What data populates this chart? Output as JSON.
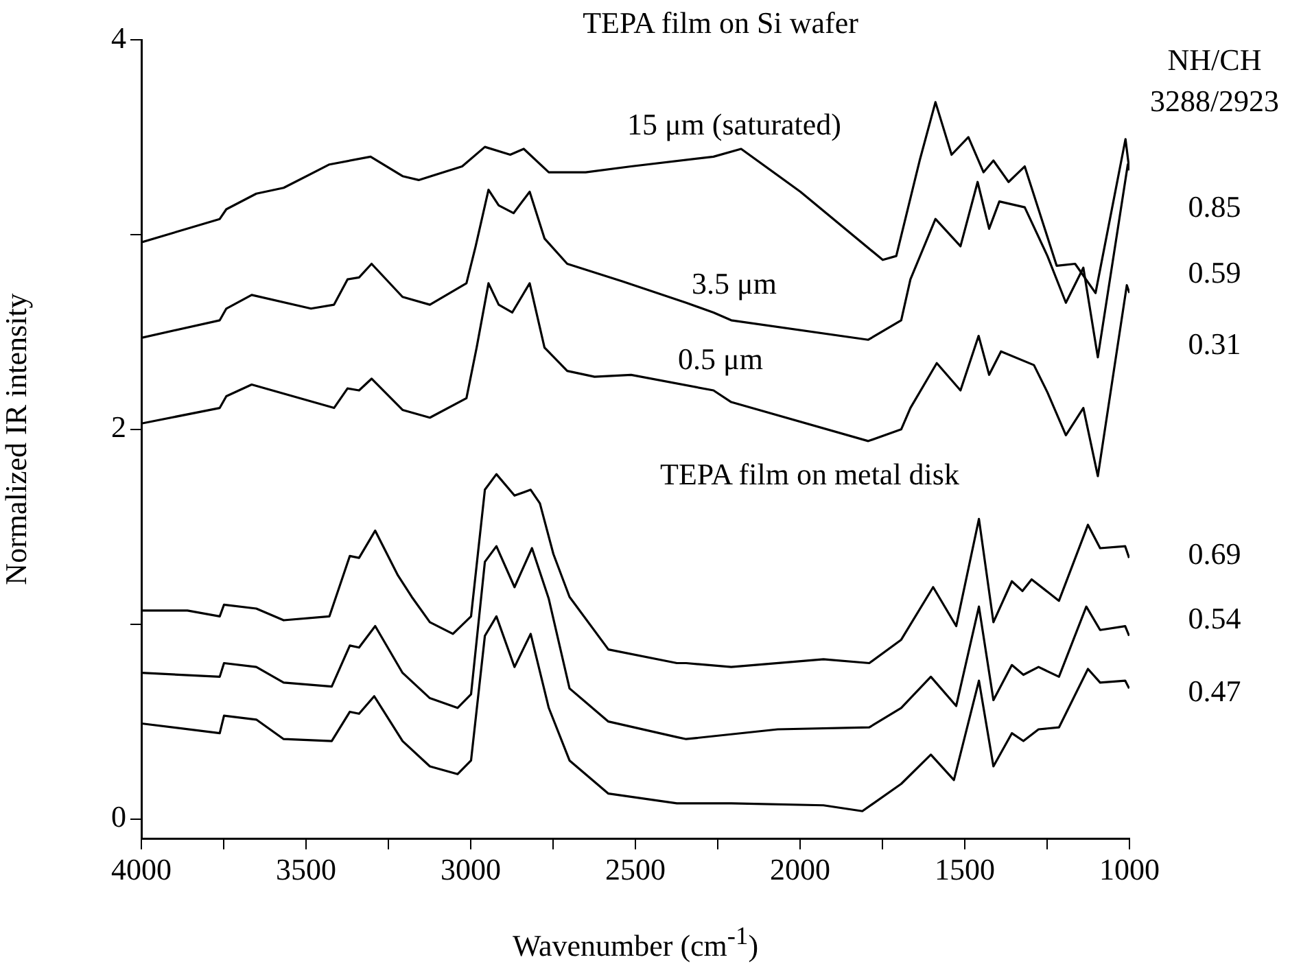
{
  "chart_data": {
    "type": "line",
    "xlabel": "Wavenumber (cm$^{-1}$)",
    "ylabel": "Normalized IR intensity",
    "annotations": [
      "TEPA film on Si wafer",
      "NH/CH",
      "3288/2923",
      "0.85",
      "0.59",
      "0.31",
      "TEPA film on metal disk",
      "0.69",
      "0.54",
      "0.47"
    ],
    "xlim": [
      4000,
      1000
    ],
    "xticks": [
      4000,
      {
        "value": 3750,
        "label": null
      },
      3500,
      {
        "value": 3250,
        "label": null
      },
      3000,
      {
        "value": 2750,
        "label": null
      },
      2500,
      {
        "value": 2250,
        "label": null
      },
      2000,
      {
        "value": 1750,
        "label": null
      },
      1500,
      {
        "value": 1250,
        "label": null
      },
      1000
    ],
    "ylim": [
      -0.1,
      4
    ],
    "yticks": [
      0,
      {
        "value": 1,
        "label": null
      },
      2,
      {
        "value": 3,
        "label": null
      },
      4
    ],
    "grid": false,
    "legend": false,
    "marker": "none",
    "line_style": "solid",
    "series": [
      {
        "name": "15 μm (saturated)",
        "color": "#000000",
        "x": [
          4000,
          3762,
          3742,
          3651,
          3568,
          3429,
          3304,
          3207,
          3158,
          3026,
          2957,
          2880,
          2839,
          2763,
          2651,
          2513,
          2263,
          2179,
          1999,
          1749,
          1708,
          1637,
          1589,
          1540,
          1489,
          1443,
          1413,
          1367,
          1318,
          1221,
          1165,
          1103,
          1012,
          1001
        ],
        "values": [
          2.96,
          3.08,
          3.13,
          3.21,
          3.24,
          3.36,
          3.4,
          3.3,
          3.28,
          3.35,
          3.45,
          3.41,
          3.44,
          3.32,
          3.32,
          3.35,
          3.4,
          3.44,
          3.22,
          2.87,
          2.89,
          3.38,
          3.68,
          3.41,
          3.5,
          3.32,
          3.38,
          3.27,
          3.35,
          2.84,
          2.85,
          2.7,
          3.49,
          3.34
        ]
      },
      {
        "name": "3.5 μm",
        "color": "#000000",
        "x": [
          4000,
          3762,
          3742,
          3665,
          3485,
          3415,
          3374,
          3339,
          3301,
          3207,
          3124,
          3013,
          2985,
          2946,
          2915,
          2870,
          2821,
          2776,
          2707,
          2540,
          2346,
          2263,
          2209,
          1793,
          1693,
          1665,
          1589,
          1513,
          1461,
          1426,
          1395,
          1318,
          1249,
          1193,
          1140,
          1096,
          1005,
          1000
        ],
        "values": [
          2.47,
          2.56,
          2.62,
          2.69,
          2.62,
          2.64,
          2.77,
          2.78,
          2.85,
          2.68,
          2.64,
          2.75,
          2.94,
          3.23,
          3.15,
          3.11,
          3.22,
          2.98,
          2.85,
          2.76,
          2.65,
          2.6,
          2.56,
          2.46,
          2.56,
          2.77,
          3.08,
          2.94,
          3.27,
          3.03,
          3.17,
          3.14,
          2.89,
          2.65,
          2.83,
          2.37,
          3.36,
          3.33
        ]
      },
      {
        "name": "0.5 μm",
        "color": "#000000",
        "x": [
          4000,
          3762,
          3742,
          3665,
          3415,
          3374,
          3339,
          3301,
          3207,
          3124,
          3013,
          2982,
          2946,
          2915,
          2874,
          2821,
          2776,
          2707,
          2624,
          2513,
          2263,
          2209,
          1793,
          1693,
          1665,
          1585,
          1513,
          1458,
          1426,
          1390,
          1290,
          1249,
          1193,
          1140,
          1096,
          1008,
          1000
        ],
        "values": [
          2.03,
          2.11,
          2.17,
          2.23,
          2.11,
          2.21,
          2.2,
          2.26,
          2.1,
          2.06,
          2.16,
          2.42,
          2.75,
          2.64,
          2.6,
          2.75,
          2.42,
          2.3,
          2.27,
          2.28,
          2.2,
          2.14,
          1.94,
          2.0,
          2.11,
          2.34,
          2.2,
          2.48,
          2.28,
          2.4,
          2.33,
          2.19,
          1.97,
          2.11,
          1.76,
          2.74,
          2.7
        ]
      },
      {
        "color": "#000000",
        "x": [
          4000,
          3860,
          3762,
          3749,
          3651,
          3568,
          3429,
          3367,
          3339,
          3290,
          3221,
          3179,
          3124,
          3054,
          2999,
          2957,
          2922,
          2867,
          2818,
          2790,
          2749,
          2700,
          2582,
          2374,
          2346,
          2209,
          1929,
          1790,
          1693,
          1596,
          1526,
          1457,
          1413,
          1357,
          1325,
          1297,
          1214,
          1126,
          1089,
          1013,
          1001
        ],
        "values": [
          1.07,
          1.07,
          1.04,
          1.1,
          1.08,
          1.02,
          1.04,
          1.35,
          1.34,
          1.48,
          1.25,
          1.14,
          1.01,
          0.95,
          1.04,
          1.69,
          1.77,
          1.66,
          1.69,
          1.62,
          1.36,
          1.14,
          0.87,
          0.8,
          0.8,
          0.78,
          0.82,
          0.8,
          0.92,
          1.19,
          0.99,
          1.54,
          1.01,
          1.22,
          1.17,
          1.23,
          1.12,
          1.51,
          1.39,
          1.4,
          1.34
        ]
      },
      {
        "color": "#000000",
        "x": [
          4000,
          3762,
          3749,
          3651,
          3568,
          3422,
          3367,
          3339,
          3290,
          3207,
          3124,
          3040,
          2999,
          2957,
          2922,
          2867,
          2814,
          2763,
          2700,
          2582,
          2374,
          2346,
          2068,
          1790,
          1693,
          1603,
          1526,
          1457,
          1413,
          1357,
          1322,
          1276,
          1214,
          1131,
          1089,
          1013,
          1001
        ],
        "values": [
          0.75,
          0.73,
          0.8,
          0.78,
          0.7,
          0.68,
          0.89,
          0.88,
          0.99,
          0.75,
          0.62,
          0.57,
          0.64,
          1.32,
          1.4,
          1.19,
          1.39,
          1.13,
          0.67,
          0.5,
          0.42,
          0.41,
          0.46,
          0.47,
          0.57,
          0.73,
          0.58,
          1.09,
          0.61,
          0.79,
          0.74,
          0.78,
          0.73,
          1.09,
          0.97,
          0.99,
          0.94
        ]
      },
      {
        "color": "#000000",
        "x": [
          4000,
          3762,
          3749,
          3651,
          3568,
          3422,
          3367,
          3339,
          3293,
          3207,
          3124,
          3040,
          2999,
          2957,
          2922,
          2867,
          2818,
          2763,
          2700,
          2582,
          2374,
          2209,
          1929,
          1811,
          1693,
          1603,
          1533,
          1457,
          1413,
          1357,
          1322,
          1276,
          1214,
          1126,
          1089,
          1013,
          1001
        ],
        "values": [
          0.49,
          0.44,
          0.53,
          0.51,
          0.41,
          0.4,
          0.55,
          0.54,
          0.63,
          0.4,
          0.27,
          0.23,
          0.3,
          0.94,
          1.04,
          0.78,
          0.95,
          0.57,
          0.3,
          0.13,
          0.08,
          0.08,
          0.07,
          0.04,
          0.18,
          0.33,
          0.2,
          0.71,
          0.27,
          0.44,
          0.4,
          0.46,
          0.47,
          0.77,
          0.7,
          0.71,
          0.67
        ]
      }
    ]
  }
}
